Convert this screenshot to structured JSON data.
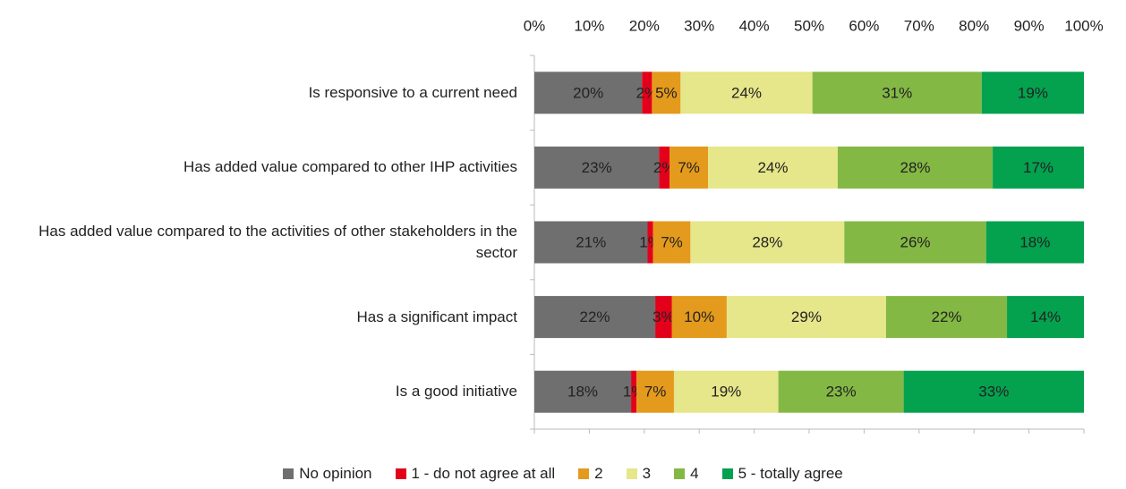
{
  "chart_data": {
    "type": "stacked-bar-horizontal",
    "categories": [
      "Is responsive to a current need",
      "Has added value compared to other IHP activities",
      "Has added value compared to the activities of other stakeholders in the sector",
      "Has a significant impact",
      "Is a good initiative"
    ],
    "series": [
      {
        "name": "No opinion",
        "color": "#6f6f6f",
        "values": [
          19.6,
          22.7,
          20.6,
          22,
          17.6
        ],
        "value_labels": [
          "20%",
          "23%",
          "21%",
          "22%",
          "18%"
        ]
      },
      {
        "name": "1 - do not agree at all",
        "color": "#e3001b",
        "values": [
          1.8,
          1.9,
          1.0,
          3,
          1.0
        ],
        "value_labels": [
          "2%",
          "2%",
          "1%",
          "3%",
          "1%"
        ]
      },
      {
        "name": "2",
        "color": "#e49a1c",
        "values": [
          5.2,
          7.0,
          6.8,
          10,
          6.8
        ],
        "value_labels": [
          "5%",
          "7%",
          "7%",
          "10%",
          "7%"
        ]
      },
      {
        "name": "3",
        "color": "#e6e68a",
        "values": [
          24.0,
          23.6,
          28.0,
          29,
          19.0
        ],
        "value_labels": [
          "24%",
          "24%",
          "28%",
          "29%",
          "19%"
        ]
      },
      {
        "name": "4",
        "color": "#84b845",
        "values": [
          30.8,
          28.2,
          25.8,
          22,
          22.8
        ],
        "value_labels": [
          "31%",
          "28%",
          "26%",
          "22%",
          "23%"
        ]
      },
      {
        "name": "5 - totally agree",
        "color": "#04a14f",
        "values": [
          18.6,
          16.6,
          17.8,
          14,
          32.8
        ],
        "value_labels": [
          "19%",
          "17%",
          "18%",
          "14%",
          "33%"
        ]
      }
    ],
    "xlim": [
      0,
      100
    ],
    "xticks": [
      {
        "value": 0,
        "label": "0%"
      },
      {
        "value": 10,
        "label": "10%"
      },
      {
        "value": 20,
        "label": "20%"
      },
      {
        "value": 30,
        "label": "30%"
      },
      {
        "value": 40,
        "label": "40%"
      },
      {
        "value": 50,
        "label": "50%"
      },
      {
        "value": 60,
        "label": "60%"
      },
      {
        "value": 70,
        "label": "70%"
      },
      {
        "value": 80,
        "label": "80%"
      },
      {
        "value": 90,
        "label": "90%"
      },
      {
        "value": 100,
        "label": "100%"
      }
    ],
    "legend": "bottom"
  }
}
